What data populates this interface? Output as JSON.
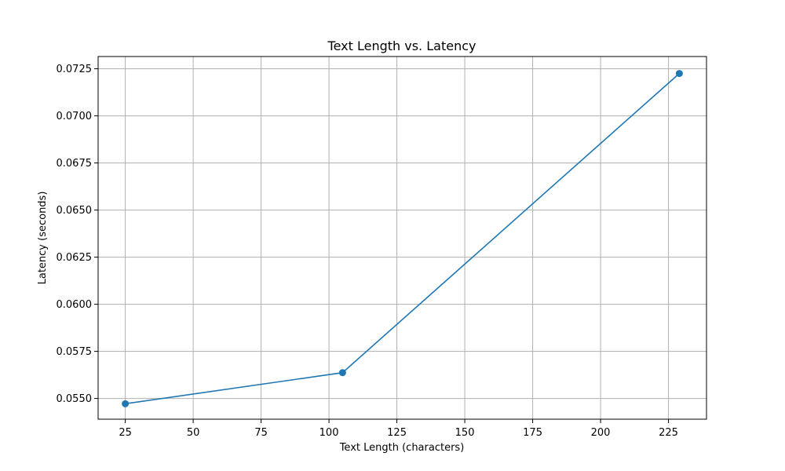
{
  "chart_data": {
    "type": "line",
    "title": "Text Length vs. Latency",
    "xlabel": "Text Length (characters)",
    "ylabel": "Latency (seconds)",
    "xlim": [
      15,
      239
    ],
    "ylim": [
      0.0539,
      0.07315
    ],
    "xticks": [
      25,
      50,
      75,
      100,
      125,
      150,
      175,
      200,
      225
    ],
    "xtick_labels": [
      "25",
      "50",
      "75",
      "100",
      "125",
      "150",
      "175",
      "200",
      "225"
    ],
    "yticks": [
      0.055,
      0.0575,
      0.06,
      0.0625,
      0.065,
      0.0675,
      0.07,
      0.0725
    ],
    "ytick_labels": [
      "0.0550",
      "0.0575",
      "0.0600",
      "0.0625",
      "0.0650",
      "0.0675",
      "0.0700",
      "0.0725"
    ],
    "grid": true,
    "series": [
      {
        "x": [
          25,
          105,
          229
        ],
        "y": [
          0.05472,
          0.05637,
          0.07225
        ],
        "color": "#1f77b4",
        "marker": "circle"
      }
    ]
  }
}
